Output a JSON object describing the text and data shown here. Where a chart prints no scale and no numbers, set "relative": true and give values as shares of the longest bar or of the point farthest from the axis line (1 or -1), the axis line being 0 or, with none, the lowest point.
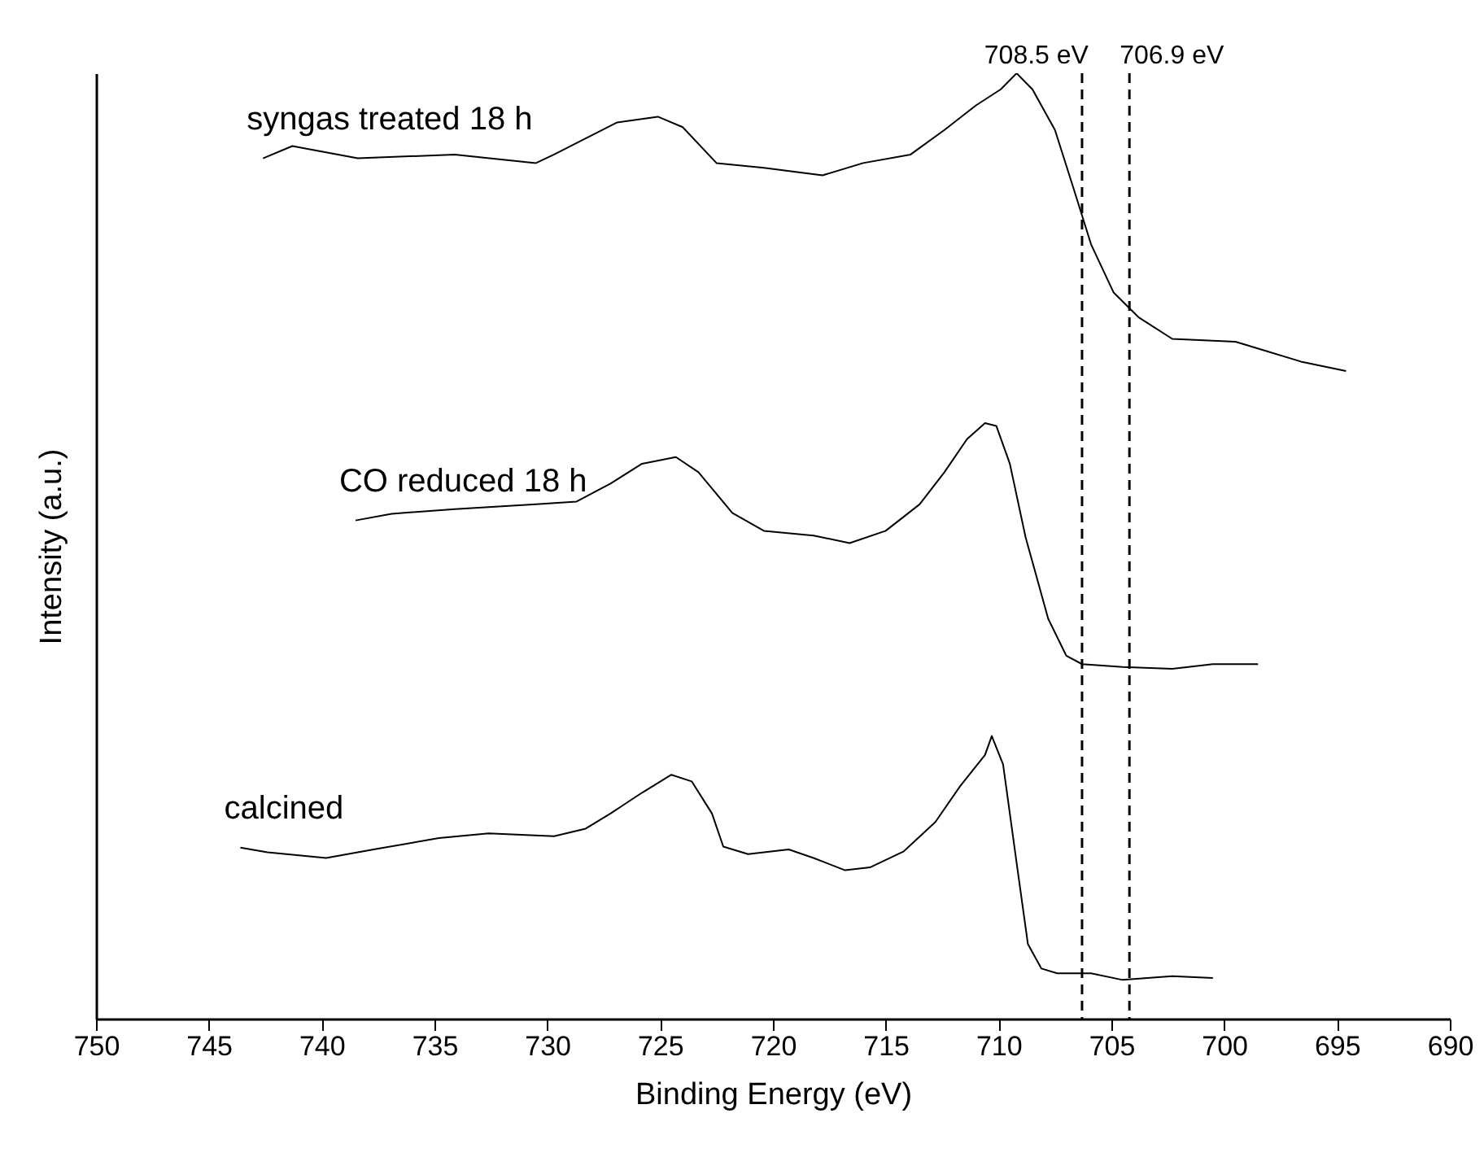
{
  "chart_data": {
    "type": "line",
    "relative": true,
    "xlabel": "Binding Energy (eV)",
    "ylabel": "Intensity (a.u.)",
    "xlim": [
      750,
      690
    ],
    "xticks": [
      750,
      745,
      740,
      735,
      730,
      725,
      720,
      715,
      710,
      705,
      700,
      695,
      690
    ],
    "grid": false,
    "legend": false,
    "marker": "none",
    "line_style": "solid",
    "series": [
      {
        "name": "calcined",
        "color": "#000000",
        "x": [
          743.6,
          742.4,
          739.8,
          737.7,
          734.8,
          732.6,
          729.7,
          728.3,
          727.2,
          725.8,
          724.5,
          723.6,
          722.7,
          722.2,
          721.1,
          719.3,
          718.2,
          716.8,
          715.7,
          714.2,
          712.8,
          711.7,
          710.6,
          710.3,
          709.8,
          709.2,
          708.7,
          708.1,
          707.4,
          705.9,
          704.5,
          702.3,
          700.5
        ],
        "values": [
          0.181,
          0.176,
          0.17,
          0.179,
          0.191,
          0.196,
          0.193,
          0.201,
          0.217,
          0.239,
          0.258,
          0.251,
          0.217,
          0.182,
          0.174,
          0.179,
          0.17,
          0.157,
          0.16,
          0.177,
          0.208,
          0.246,
          0.279,
          0.299,
          0.269,
          0.165,
          0.079,
          0.053,
          0.048,
          0.048,
          0.041,
          0.045,
          0.043
        ]
      },
      {
        "name": "CO reduced 18 h",
        "color": "#000000",
        "x": [
          738.5,
          736.9,
          734.1,
          730.5,
          728.7,
          727.2,
          725.8,
          724.3,
          723.3,
          721.8,
          720.4,
          718.2,
          716.6,
          715.0,
          713.5,
          712.4,
          711.4,
          710.6,
          710.1,
          709.5,
          708.8,
          707.8,
          707.0,
          706.3,
          704.5,
          702.3,
          700.5,
          698.5
        ],
        "values": [
          0.527,
          0.534,
          0.539,
          0.544,
          0.547,
          0.566,
          0.587,
          0.594,
          0.578,
          0.535,
          0.516,
          0.511,
          0.503,
          0.516,
          0.544,
          0.578,
          0.613,
          0.63,
          0.627,
          0.587,
          0.509,
          0.423,
          0.384,
          0.375,
          0.372,
          0.37,
          0.375,
          0.375
        ]
      },
      {
        "name": "syngas treated 18 h",
        "color": "#000000",
        "x": [
          742.6,
          741.3,
          738.4,
          734.1,
          730.5,
          729.7,
          728.3,
          726.9,
          725.1,
          724.0,
          722.5,
          720.4,
          717.8,
          716.0,
          713.9,
          712.4,
          711.0,
          709.9,
          709.2,
          708.5,
          707.5,
          706.7,
          705.9,
          704.9,
          703.8,
          702.3,
          699.5,
          696.6,
          694.6
        ],
        "values": [
          0.91,
          0.923,
          0.91,
          0.914,
          0.905,
          0.914,
          0.931,
          0.948,
          0.954,
          0.943,
          0.905,
          0.9,
          0.892,
          0.905,
          0.914,
          0.94,
          0.966,
          0.983,
          1.0,
          0.983,
          0.94,
          0.88,
          0.819,
          0.768,
          0.742,
          0.719,
          0.716,
          0.695,
          0.685
        ]
      }
    ],
    "ref_lines": [
      {
        "axis": "x",
        "value": 706.3,
        "label": "708.5 eV",
        "color": "#000000",
        "line_style": "dashed"
      },
      {
        "axis": "x",
        "value": 704.2,
        "label": "706.9 eV",
        "color": "#000000",
        "line_style": "dashed"
      }
    ]
  }
}
